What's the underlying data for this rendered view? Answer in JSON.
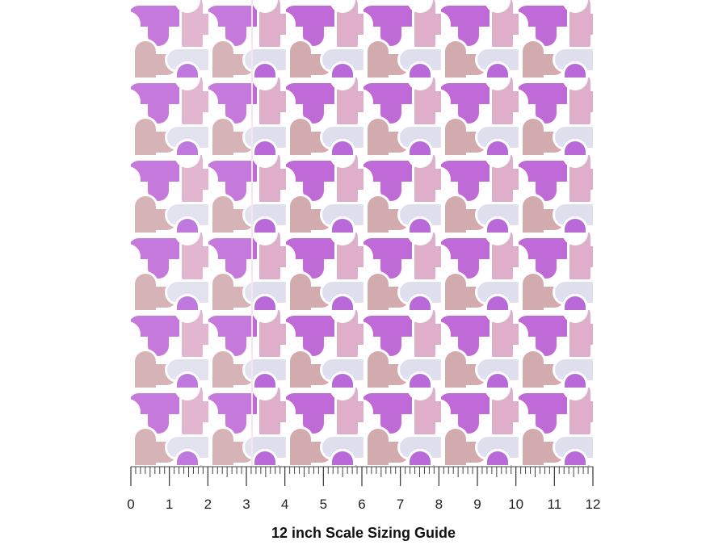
{
  "ruler": {
    "ticks": [
      0,
      1,
      2,
      3,
      4,
      5,
      6,
      7,
      8,
      9,
      10,
      11,
      12
    ],
    "caption": "12 inch Scale Sizing Guide"
  }
}
